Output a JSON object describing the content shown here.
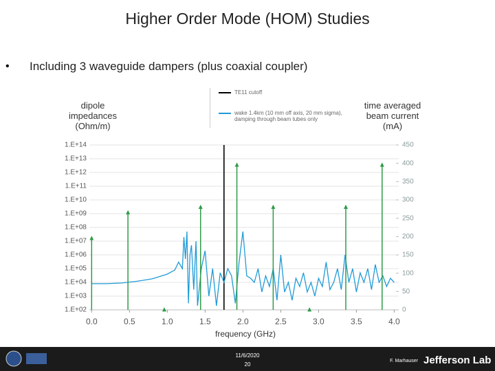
{
  "slide": {
    "title": "Higher Order Mode (HOM) Studies",
    "bullet": "Including 3 waveguide dampers (plus coaxial coupler)"
  },
  "footer": {
    "date": "11/6/2020",
    "page": "20",
    "author": "F. Marhauser",
    "logo": "Jefferson Lab"
  },
  "chart_data": {
    "type": "line",
    "y_label": "dipole impedances (Ohm/m)",
    "y2_label": "time averaged beam current (mA)",
    "x_label": "frequency (GHz)",
    "log_y": true,
    "grid": true,
    "xlim": [
      -0.03,
      4.06
    ],
    "xticks": [
      {
        "value": 0,
        "label": "0.0"
      },
      {
        "value": 0.5,
        "label": "0.5"
      },
      {
        "value": 1,
        "label": "1.0"
      },
      {
        "value": 1.5,
        "label": "1.5"
      },
      {
        "value": 2,
        "label": "2.0"
      },
      {
        "value": 2.5,
        "label": "2.5"
      },
      {
        "value": 3,
        "label": "3.0"
      },
      {
        "value": 3.5,
        "label": "3.5"
      },
      {
        "value": 4,
        "label": "4.0"
      }
    ],
    "ylim": [
      100.0,
      100000000000000.0
    ],
    "yticks": [
      {
        "value": 100.0,
        "label": "1.E+02"
      },
      {
        "value": 1000.0,
        "label": "1.E+03"
      },
      {
        "value": 10000.0,
        "label": "1.E+04"
      },
      {
        "value": 100000.0,
        "label": "1.E+05"
      },
      {
        "value": 1000000.0,
        "label": "1.E+06"
      },
      {
        "value": 10000000.0,
        "label": "1.E+07"
      },
      {
        "value": 100000000.0,
        "label": "1.E+08"
      },
      {
        "value": 1000000000.0,
        "label": "1.E+09"
      },
      {
        "value": 10000000000.0,
        "label": "1.E+10"
      },
      {
        "value": 100000000000.0,
        "label": "1.E+11"
      },
      {
        "value": 1000000000000.0,
        "label": "1.E+12"
      },
      {
        "value": 10000000000000.0,
        "label": "1.E+13"
      },
      {
        "value": 100000000000000.0,
        "label": "1.E+14"
      }
    ],
    "y2lim": [
      0,
      450
    ],
    "y2ticks": [
      0,
      50,
      100,
      150,
      200,
      250,
      300,
      350,
      400,
      450
    ],
    "series": [
      {
        "name": "TE11 cutoff",
        "color": "#000000",
        "x": [
          1.75,
          1.75
        ],
        "values": [
          100.0,
          100000000000000.0
        ]
      },
      {
        "name": "wake 1.4km (10 mm off axis, 20 mm sigma), damping through beam tubes only",
        "color": "#1f9bd7",
        "x": [
          0,
          0.2,
          0.4,
          0.6,
          0.8,
          1.0,
          1.1,
          1.15,
          1.2,
          1.22,
          1.24,
          1.26,
          1.28,
          1.3,
          1.32,
          1.35,
          1.38,
          1.4,
          1.45,
          1.5,
          1.55,
          1.6,
          1.65,
          1.7,
          1.75,
          1.8,
          1.85,
          1.9,
          1.95,
          2.0,
          2.05,
          2.1,
          2.15,
          2.2,
          2.25,
          2.3,
          2.35,
          2.4,
          2.45,
          2.5,
          2.55,
          2.6,
          2.65,
          2.7,
          2.75,
          2.8,
          2.85,
          2.9,
          2.95,
          3.0,
          3.05,
          3.1,
          3.15,
          3.2,
          3.25,
          3.3,
          3.35,
          3.4,
          3.45,
          3.5,
          3.55,
          3.6,
          3.65,
          3.7,
          3.75,
          3.8,
          3.85,
          3.9,
          3.95,
          4.0
        ],
        "values": [
          8000,
          8000,
          9000,
          12000,
          18000,
          40000,
          80000,
          300000,
          100000,
          20000000,
          500000,
          50000000,
          300,
          1000000,
          5000000,
          3000,
          10000000,
          200,
          100000,
          2000000,
          1000,
          100000,
          200,
          50000,
          10000,
          100000,
          30000,
          300,
          300000,
          50000000,
          30000,
          20000,
          10000,
          100000,
          2000,
          30000,
          5000,
          100000,
          500,
          1000000,
          2000,
          10000,
          500,
          20000,
          5000,
          50000,
          2000,
          10000,
          1000,
          20000,
          5000,
          300000,
          3000,
          10000,
          100000,
          3000,
          1000000,
          10000,
          100000,
          2000,
          50000,
          10000,
          100000,
          3000,
          200000,
          10000,
          30000,
          5000,
          20000,
          10000
        ]
      },
      {
        "color": "#2e9b47",
        "axis": "y2",
        "style": "stem",
        "x": [
          0,
          0.48,
          0.96,
          1.44,
          1.92,
          2.4,
          2.88,
          3.36,
          3.84
        ],
        "values": [
          200,
          270,
          5,
          285,
          400,
          285,
          5,
          285,
          400
        ]
      }
    ]
  }
}
